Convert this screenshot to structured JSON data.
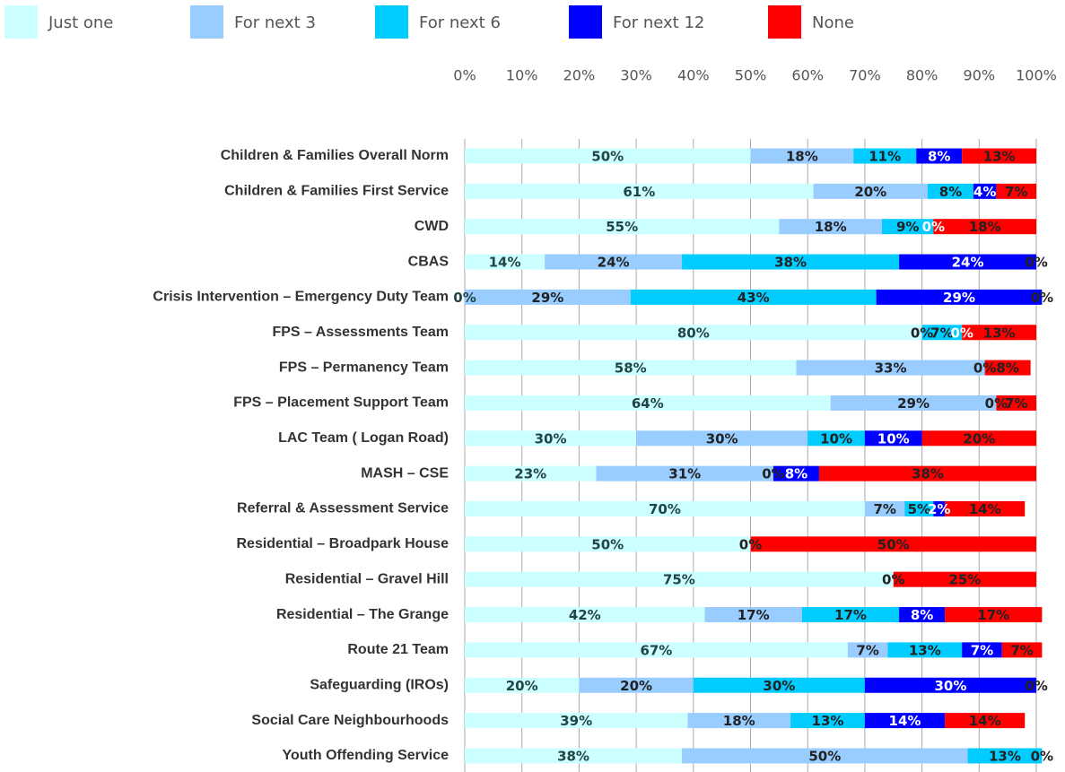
{
  "chart_data": {
    "type": "bar",
    "orientation": "horizontal",
    "stacked": true,
    "categories": [
      "Children & Families Overall Norm",
      "Children & Families First Service",
      "CWD",
      "CBAS",
      "Crisis Intervention – Emergency Duty Team",
      "FPS – Assessments Team",
      "FPS – Permanency Team",
      "FPS – Placement Support Team",
      "LAC Team ( Logan Road) ",
      "MASH – CSE",
      "Referral & Assessment Service ",
      "Residential – Broadpark House",
      "Residential  – Gravel Hill",
      "Residential  – The Grange",
      "Route 21 Team",
      "Safeguarding (IROs)",
      "Social Care Neighbourhoods",
      "Youth Offending Service"
    ],
    "series": [
      {
        "name": "Just one",
        "color": "#ccffff",
        "label_color": "#244",
        "values": [
          50,
          61,
          55,
          14,
          0,
          80,
          58,
          64,
          30,
          23,
          70,
          50,
          75,
          42,
          67,
          20,
          39,
          38
        ],
        "value_labels": [
          "50%",
          "61%",
          "55%",
          "14%",
          "0%",
          "80%",
          "58%",
          "64%",
          "30%",
          "23%",
          "70%",
          "50%",
          "75%",
          "42%",
          "67%",
          "20%",
          "39%",
          "38%"
        ]
      },
      {
        "name": "For next 3",
        "color": "#99ccff",
        "label_color": "#222",
        "values": [
          18,
          20,
          18,
          24,
          29,
          0,
          33,
          29,
          30,
          31,
          7,
          0,
          0,
          17,
          7,
          20,
          18,
          50
        ],
        "value_labels": [
          "18%",
          "20%",
          "18%",
          "24%",
          "29%",
          "0%",
          "33%",
          "29%",
          "30%",
          "31%",
          "7%",
          "0%",
          "0%",
          "17%",
          "7%",
          "20%",
          "18%",
          "50%"
        ]
      },
      {
        "name": "For next 6",
        "color": "#00ccff",
        "label_color": "#222",
        "values": [
          11,
          8,
          9,
          38,
          43,
          7,
          0,
          0,
          10,
          0,
          5,
          0,
          0,
          17,
          13,
          30,
          13,
          13
        ],
        "value_labels": [
          "11%",
          "8%",
          "9%",
          "38%",
          "43%",
          "7%",
          "0%",
          "0%",
          "10%",
          "0%",
          "5%",
          null,
          null,
          "17%",
          "13%",
          "30%",
          "13%",
          "13%"
        ]
      },
      {
        "name": "For next 12",
        "color": "#0000ff",
        "label_color": "#fff",
        "values": [
          8,
          4,
          0,
          24,
          29,
          0,
          0,
          0,
          10,
          8,
          2,
          0,
          0,
          8,
          7,
          30,
          14,
          0
        ],
        "value_labels": [
          "8%",
          "4%",
          "0%",
          "24%",
          "29%",
          "0%",
          null,
          null,
          "10%",
          "8%",
          "2%",
          null,
          null,
          "8%",
          "7%",
          "30%",
          "14%",
          null
        ]
      },
      {
        "name": "None",
        "color": "#ff0000",
        "label_color": "#222",
        "values": [
          13,
          7,
          18,
          0,
          0,
          13,
          8,
          7,
          20,
          38,
          14,
          50,
          25,
          17,
          7,
          0,
          14,
          0
        ],
        "value_labels": [
          "13%",
          "7%",
          "18%",
          "0%",
          "0%",
          "13%",
          "8%",
          "7%",
          "20%",
          "38%",
          "14%",
          "50%",
          "25%",
          "17%",
          "7%",
          "0%",
          "14%",
          "0%"
        ]
      }
    ],
    "xlim": [
      0,
      100
    ],
    "xticks": [
      {
        "value": 0,
        "label": "0%"
      },
      {
        "value": 10,
        "label": "10%"
      },
      {
        "value": 20,
        "label": "20%"
      },
      {
        "value": 30,
        "label": "30%"
      },
      {
        "value": 40,
        "label": "40%"
      },
      {
        "value": 50,
        "label": "50%"
      },
      {
        "value": 60,
        "label": "60%"
      },
      {
        "value": 70,
        "label": "70%"
      },
      {
        "value": 80,
        "label": "80%"
      },
      {
        "value": 90,
        "label": "90%"
      },
      {
        "value": 100,
        "label": "100%"
      }
    ],
    "grid": true,
    "legend": "top"
  }
}
